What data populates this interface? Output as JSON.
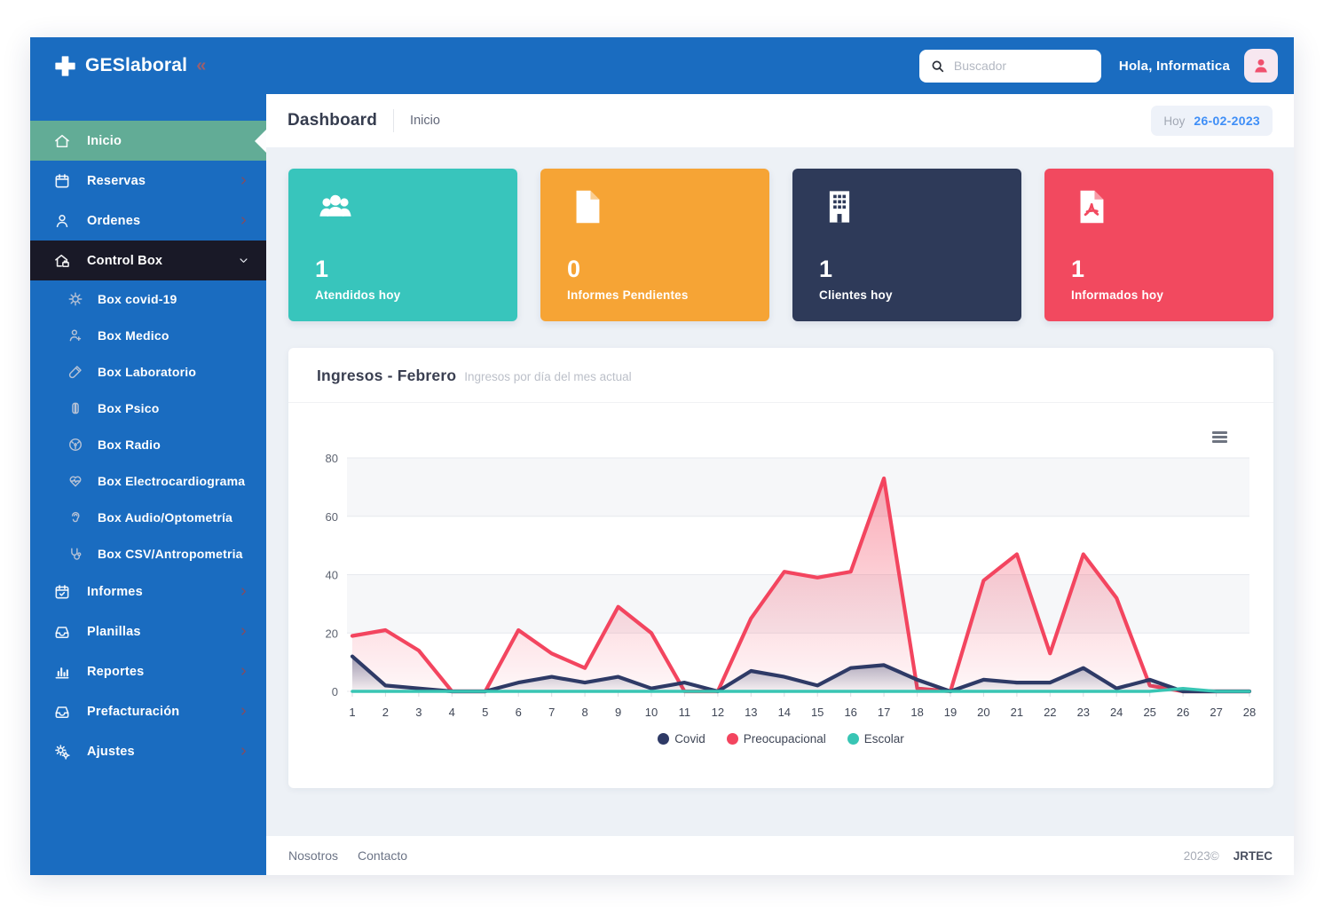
{
  "topbar": {
    "logo_text": "GESlaboral",
    "collapse_glyph": "«",
    "search_placeholder": "Buscador",
    "greeting": "Hola, Informatica"
  },
  "breadcrumb": {
    "title": "Dashboard",
    "section": "Inicio",
    "date_label": "Hoy",
    "date_value": "26-02-2023"
  },
  "sidebar": {
    "items": [
      {
        "label": "Inicio",
        "icon": "home-icon",
        "active": true,
        "has_children": false
      },
      {
        "label": "Reservas",
        "icon": "calendar-icon",
        "has_children": true
      },
      {
        "label": "Ordenes",
        "icon": "user-icon",
        "has_children": true
      },
      {
        "label": "Control Box",
        "icon": "control-box-icon",
        "has_children": true,
        "expanded": true,
        "dark": true,
        "children": [
          {
            "label": "Box covid-19",
            "icon": "virus-icon"
          },
          {
            "label": "Box Medico",
            "icon": "doctor-icon"
          },
          {
            "label": "Box Laboratorio",
            "icon": "test-tube-icon"
          },
          {
            "label": "Box Psico",
            "icon": "brain-icon"
          },
          {
            "label": "Box Radio",
            "icon": "radiation-icon"
          },
          {
            "label": "Box Electrocardiograma",
            "icon": "heartbeat-icon"
          },
          {
            "label": "Box Audio/Optometría",
            "icon": "ear-icon"
          },
          {
            "label": "Box CSV/Antropometria",
            "icon": "stethoscope-icon"
          }
        ]
      },
      {
        "label": "Informes",
        "icon": "calendar-check-icon",
        "has_children": true
      },
      {
        "label": "Planillas",
        "icon": "inbox-icon",
        "has_children": true
      },
      {
        "label": "Reportes",
        "icon": "bar-chart-icon",
        "has_children": true
      },
      {
        "label": "Prefacturación",
        "icon": "inbox-icon",
        "has_children": true
      },
      {
        "label": "Ajustes",
        "icon": "gears-icon",
        "has_children": true
      }
    ]
  },
  "cards": [
    {
      "value": "1",
      "label": "Atendidos hoy",
      "icon": "users-icon",
      "color": "#38c5bc"
    },
    {
      "value": "0",
      "label": "Informes Pendientes",
      "icon": "file-icon",
      "color": "#f6a435"
    },
    {
      "value": "1",
      "label": "Clientes hoy",
      "icon": "building-icon",
      "color": "#2e3a59"
    },
    {
      "value": "1",
      "label": "Informados hoy",
      "icon": "file-pdf-icon",
      "color": "#f2495f"
    }
  ],
  "chart_data": {
    "type": "area",
    "title": "Ingresos - Febrero",
    "subtitle": "Ingresos por día del mes actual",
    "xlabel": "",
    "ylabel": "",
    "x": [
      1,
      2,
      3,
      4,
      5,
      6,
      7,
      8,
      9,
      10,
      11,
      12,
      13,
      14,
      15,
      16,
      17,
      18,
      19,
      20,
      21,
      22,
      23,
      24,
      25,
      26,
      27,
      28
    ],
    "series": [
      {
        "name": "Covid",
        "color": "#2e3a66",
        "values": [
          12,
          2,
          1,
          0,
          0,
          3,
          5,
          3,
          5,
          1,
          3,
          0,
          7,
          5,
          2,
          8,
          9,
          4,
          0,
          4,
          3,
          3,
          8,
          1,
          4,
          0,
          0,
          0
        ]
      },
      {
        "name": "Preocupacional",
        "color": "#f3455f",
        "values": [
          19,
          21,
          14,
          0,
          0,
          21,
          13,
          8,
          29,
          20,
          0,
          0,
          25,
          41,
          39,
          41,
          73,
          1,
          0,
          38,
          47,
          13,
          47,
          32,
          2,
          0,
          0,
          0
        ]
      },
      {
        "name": "Escolar",
        "color": "#38c5b4",
        "values": [
          0,
          0,
          0,
          0,
          0,
          0,
          0,
          0,
          0,
          0,
          0,
          0,
          0,
          0,
          0,
          0,
          0,
          0,
          0,
          0,
          0,
          0,
          0,
          0,
          0,
          1,
          0,
          0
        ]
      }
    ],
    "ylim": [
      0,
      80
    ],
    "yticks": [
      0,
      20,
      40,
      60,
      80
    ],
    "grid": "horizontal-bands",
    "legend_position": "bottom"
  },
  "footer": {
    "links": [
      "Nosotros",
      "Contacto"
    ],
    "copyright": "2023©",
    "brand": "JRTEC"
  },
  "colors": {
    "primary_blue": "#1a6cc0",
    "sidebar_dark_item": "#191927",
    "active_green": "#62ac96",
    "content_bg": "#edf1f6",
    "date_blue": "#3e8ef7",
    "avatar_pink": "#f0506e"
  }
}
